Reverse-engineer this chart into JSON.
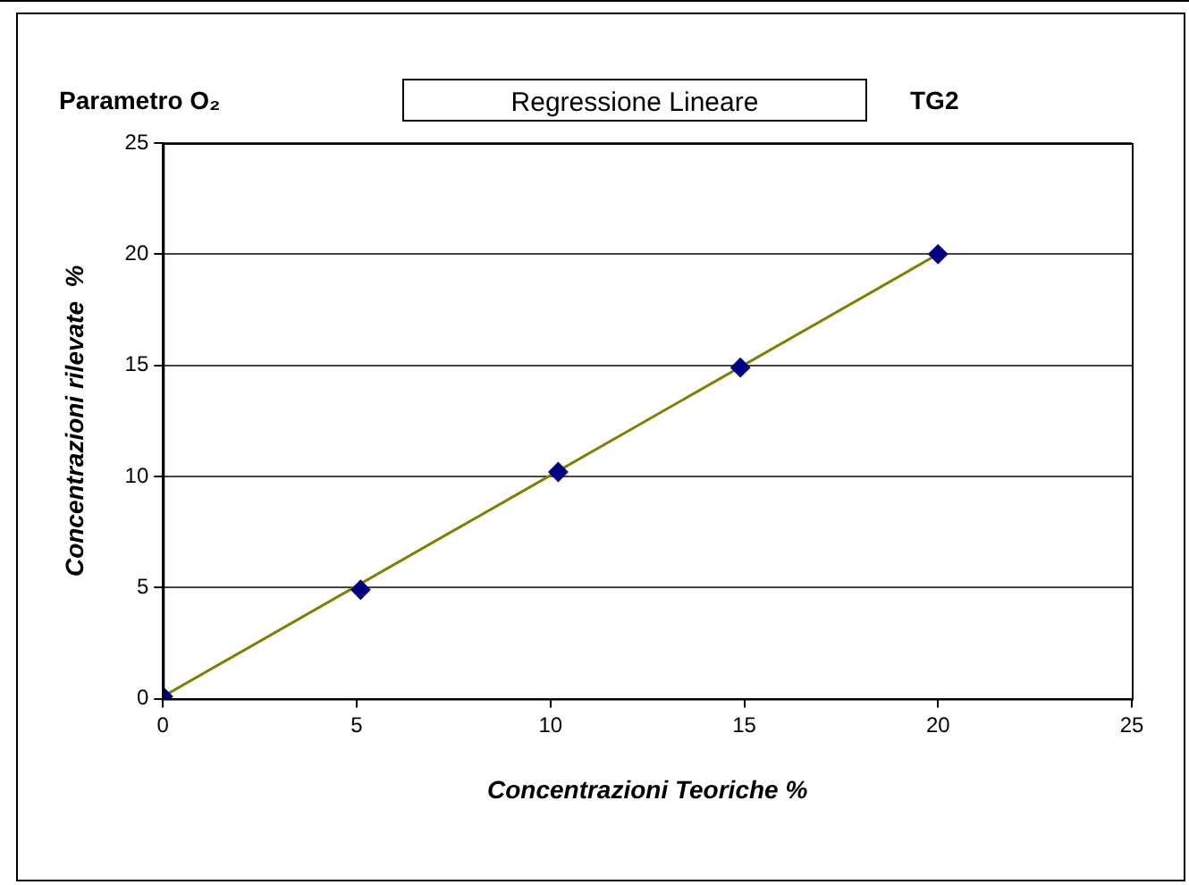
{
  "chart_data": {
    "type": "scatter",
    "title": "Regressione Lineare",
    "annotations": [
      "Parametro O₂",
      "TG2"
    ],
    "xlabel": "Concentrazioni Teoriche %",
    "ylabel": "Concentrazioni rilevate  %",
    "series": [
      {
        "type": "scatter",
        "color": "#000080",
        "marker": "diamond",
        "x": [
          0,
          5.1,
          10.2,
          14.9,
          20
        ],
        "values": [
          0.1,
          4.9,
          10.2,
          14.9,
          20
        ]
      },
      {
        "type": "line",
        "color": "#808000",
        "marker": "none",
        "x": [
          0,
          20
        ],
        "values": [
          0.1,
          20
        ]
      }
    ],
    "xlim": [
      0,
      25
    ],
    "xticks": [
      0,
      5,
      10,
      15,
      20,
      25
    ],
    "ylim": [
      0,
      25
    ],
    "yticks": [
      0,
      5,
      10,
      15,
      20,
      25
    ],
    "grid": "y",
    "legend": false
  }
}
